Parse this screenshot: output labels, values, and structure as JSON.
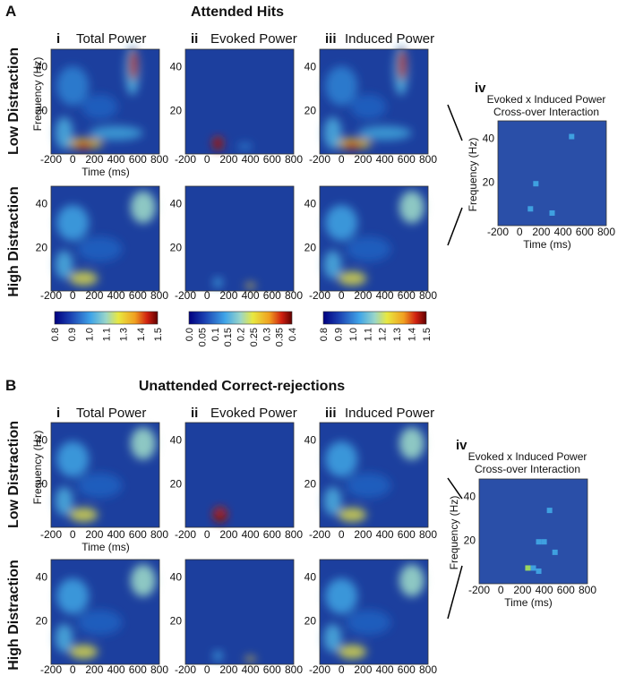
{
  "figure": {
    "x_axis_label": "Time (ms)",
    "y_axis_label": "Frequency (Hz)",
    "x_tick_labels": [
      "-200",
      "0",
      "200",
      "400",
      "600",
      "800"
    ],
    "y_tick_labels": [
      "20",
      "40"
    ],
    "panels": [
      {
        "letter": "A",
        "title": "Attended Hits",
        "rows": [
          "Low Distraction",
          "High Distraction"
        ],
        "columns": [
          {
            "numeral": "i",
            "title": "Total Power",
            "colorbar_ticks": [
              "0.8",
              "0.9",
              "1.0",
              "1.1",
              "1.3",
              "1.4",
              "1.5"
            ]
          },
          {
            "numeral": "ii",
            "title": "Evoked Power",
            "colorbar_ticks": [
              "0.0",
              "0.05",
              "0.1",
              "0.15",
              "0.2",
              "0.25",
              "0.3",
              "0.35",
              "0.4"
            ]
          },
          {
            "numeral": "iii",
            "title": "Induced Power",
            "colorbar_ticks": [
              "0.8",
              "0.9",
              "1.0",
              "1.1",
              "1.2",
              "1.3",
              "1.4",
              "1.5"
            ]
          }
        ],
        "interaction": {
          "numeral": "iv",
          "title": "Evoked x Induced Power",
          "subtitle": "Cross-over Interaction"
        }
      },
      {
        "letter": "B",
        "title": "Unattended Correct-rejections",
        "rows": [
          "Low Distraction",
          "High Distraction"
        ],
        "columns": [
          {
            "numeral": "i",
            "title": "Total Power"
          },
          {
            "numeral": "ii",
            "title": "Evoked Power"
          },
          {
            "numeral": "iii",
            "title": "Induced Power"
          }
        ],
        "interaction": {
          "numeral": "iv",
          "title": "Evoked x Induced Power",
          "subtitle": "Cross-over Interaction"
        }
      }
    ]
  }
}
